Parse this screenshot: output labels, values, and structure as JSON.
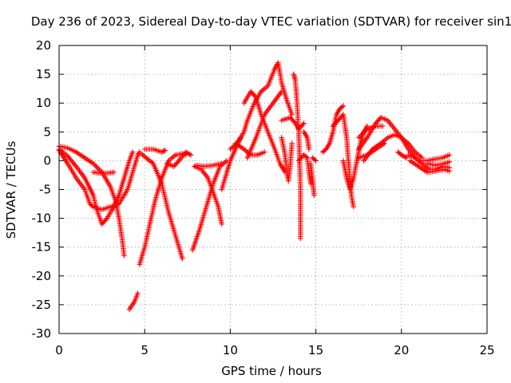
{
  "chart_data": {
    "type": "scatter",
    "title": "Day 236 of 2023, Sidereal Day-to-day VTEC variation (SDTVAR) for receiver sin1",
    "xlabel": "GPS time / hours",
    "ylabel": "SDTVAR / TECUs",
    "xlim": [
      0,
      25
    ],
    "ylim": [
      -30,
      20
    ],
    "xticks": [
      "0",
      "5",
      "10",
      "15",
      "20",
      "25"
    ],
    "yticks": [
      "-30",
      "-25",
      "-20",
      "-15",
      "-10",
      "-5",
      "0",
      "5",
      "10",
      "15",
      "20"
    ],
    "grid": true,
    "marker": "+",
    "series": [
      {
        "name": "SDTVAR",
        "color": "#ff0000",
        "tracks": [
          [
            [
              0,
              2.5
            ],
            [
              0.5,
              2.2
            ],
            [
              1,
              1.5
            ],
            [
              1.5,
              0.5
            ],
            [
              2,
              -0.5
            ],
            [
              2.5,
              -2
            ],
            [
              3,
              -4.5
            ],
            [
              3.3,
              -7
            ],
            [
              3.5,
              -10
            ],
            [
              3.7,
              -14
            ],
            [
              3.8,
              -16.5
            ]
          ],
          [
            [
              0,
              2
            ],
            [
              0.5,
              0.8
            ],
            [
              1,
              -1
            ],
            [
              1.5,
              -3
            ],
            [
              2,
              -6
            ],
            [
              2.2,
              -8.5
            ],
            [
              2.5,
              -11
            ],
            [
              2.8,
              -10
            ],
            [
              3.2,
              -8
            ],
            [
              3.5,
              -6
            ],
            [
              3.7,
              -4
            ],
            [
              3.9,
              -2
            ],
            [
              4.1,
              0
            ],
            [
              4.3,
              1.5
            ]
          ],
          [
            [
              0,
              1.8
            ],
            [
              0.5,
              -0.5
            ],
            [
              1,
              -3
            ],
            [
              1.5,
              -5
            ],
            [
              1.8,
              -7.5
            ],
            [
              2,
              -8
            ],
            [
              2.5,
              -8.5
            ],
            [
              3,
              -8
            ],
            [
              3.5,
              -7.5
            ],
            [
              4,
              -5
            ],
            [
              4.3,
              -2
            ],
            [
              4.6,
              1
            ],
            [
              4.7,
              1.5
            ]
          ],
          [
            [
              2,
              -2
            ],
            [
              2.5,
              -2.2
            ],
            [
              3,
              -2.1
            ],
            [
              3.2,
              -2
            ]
          ],
          [
            [
              4.1,
              -25.8
            ],
            [
              4.4,
              -24.5
            ],
            [
              4.6,
              -23
            ]
          ],
          [
            [
              4.7,
              -18
            ],
            [
              5,
              -15
            ],
            [
              5.3,
              -11
            ],
            [
              5.6,
              -7
            ],
            [
              6,
              -3
            ],
            [
              6.4,
              0
            ],
            [
              6.8,
              1
            ],
            [
              7.2,
              1.2
            ],
            [
              7.4,
              1
            ]
          ],
          [
            [
              4.8,
              1.2
            ],
            [
              5.5,
              -0.5
            ],
            [
              6,
              -4
            ],
            [
              6.4,
              -9
            ],
            [
              6.8,
              -13
            ],
            [
              7.2,
              -17
            ]
          ],
          [
            [
              5,
              2
            ],
            [
              5.5,
              2
            ],
            [
              6,
              1.5
            ],
            [
              6.2,
              1.8
            ]
          ],
          [
            [
              6.3,
              -0.5
            ],
            [
              6.7,
              -1
            ],
            [
              7,
              0
            ],
            [
              7.4,
              1.5
            ],
            [
              7.7,
              1
            ]
          ],
          [
            [
              7.8,
              -15.5
            ],
            [
              8.2,
              -12
            ],
            [
              8.6,
              -8
            ],
            [
              9,
              -4
            ],
            [
              9.4,
              -1
            ],
            [
              9.8,
              0
            ]
          ],
          [
            [
              7.9,
              -1
            ],
            [
              8.3,
              -1.5
            ],
            [
              8.7,
              -3
            ],
            [
              9,
              -5.5
            ],
            [
              9.3,
              -8
            ],
            [
              9.5,
              -11
            ]
          ],
          [
            [
              8,
              -0.8
            ],
            [
              8.5,
              -1
            ],
            [
              9,
              -0.8
            ],
            [
              9.5,
              -0.5
            ]
          ],
          [
            [
              9.5,
              -5
            ],
            [
              9.8,
              -2
            ],
            [
              10,
              0
            ],
            [
              10.3,
              2
            ],
            [
              10.6,
              4
            ]
          ],
          [
            [
              10,
              2
            ],
            [
              10.4,
              3
            ],
            [
              10.8,
              5
            ],
            [
              11,
              7
            ],
            [
              11.4,
              10
            ],
            [
              11.8,
              12
            ],
            [
              12.2,
              13
            ],
            [
              12.6,
              16
            ],
            [
              12.8,
              17
            ],
            [
              13,
              13.5
            ],
            [
              13.3,
              10.5
            ],
            [
              13.6,
              8
            ]
          ],
          [
            [
              10.8,
              10
            ],
            [
              11.2,
              12
            ],
            [
              11.5,
              11
            ],
            [
              11.8,
              8
            ],
            [
              12.2,
              5
            ],
            [
              12.6,
              2
            ],
            [
              12.9,
              -0.5
            ],
            [
              13.2,
              -2
            ]
          ],
          [
            [
              10.3,
              3
            ],
            [
              10.8,
              2
            ],
            [
              11.2,
              1
            ],
            [
              11.6,
              1
            ],
            [
              12,
              1.5
            ]
          ],
          [
            [
              11,
              0.5
            ],
            [
              11.5,
              4
            ],
            [
              12,
              8
            ],
            [
              12.5,
              10
            ],
            [
              13,
              12
            ]
          ],
          [
            [
              13,
              4
            ],
            [
              13.2,
              1
            ],
            [
              13.3,
              -2
            ],
            [
              13.4,
              -3.5
            ],
            [
              13.5,
              -1
            ],
            [
              13.6,
              3
            ]
          ],
          [
            [
              13,
              7
            ],
            [
              13.5,
              7.5
            ],
            [
              13.8,
              6.5
            ],
            [
              14,
              5.5
            ],
            [
              14.3,
              6.5
            ]
          ],
          [
            [
              13.7,
              15
            ],
            [
              13.8,
              14
            ],
            [
              13.9,
              10
            ],
            [
              14,
              5
            ],
            [
              14.05,
              0
            ],
            [
              14.1,
              -5
            ],
            [
              14.1,
              -13.5
            ]
          ],
          [
            [
              14,
              0
            ],
            [
              14.3,
              1
            ],
            [
              14.5,
              0.5
            ],
            [
              14.6,
              -2
            ],
            [
              14.7,
              -4
            ]
          ],
          [
            [
              14.3,
              5
            ],
            [
              14.5,
              4
            ],
            [
              14.6,
              2
            ]
          ],
          [
            [
              14.7,
              -0.5
            ],
            [
              14.8,
              -3
            ],
            [
              14.9,
              -6
            ]
          ],
          [
            [
              14.8,
              0.5
            ],
            [
              15,
              0
            ]
          ],
          [
            [
              15.4,
              1.5
            ],
            [
              15.6,
              2
            ],
            [
              15.8,
              3
            ],
            [
              16,
              5
            ],
            [
              16.2,
              8
            ],
            [
              16.4,
              9
            ],
            [
              16.6,
              9.5
            ]
          ],
          [
            [
              16,
              6
            ],
            [
              16.3,
              7
            ],
            [
              16.6,
              8
            ],
            [
              16.8,
              4
            ],
            [
              16.9,
              0
            ],
            [
              17,
              -4
            ],
            [
              17.1,
              -6.5
            ],
            [
              17.2,
              -8
            ]
          ],
          [
            [
              16.6,
              0
            ],
            [
              16.8,
              -3
            ],
            [
              17,
              -5
            ],
            [
              17.2,
              -3
            ],
            [
              17.4,
              0
            ],
            [
              17.6,
              3
            ],
            [
              17.8,
              5
            ],
            [
              18,
              6
            ]
          ],
          [
            [
              17.5,
              2
            ],
            [
              18,
              4
            ],
            [
              18.5,
              6.5
            ],
            [
              18.8,
              7.5
            ],
            [
              19.2,
              7
            ],
            [
              19.6,
              5.5
            ],
            [
              20,
              4
            ],
            [
              20.4,
              2
            ],
            [
              20.8,
              0.5
            ]
          ],
          [
            [
              17.5,
              4
            ],
            [
              18,
              5.5
            ],
            [
              18.5,
              6
            ],
            [
              18.9,
              6
            ]
          ],
          [
            [
              17.8,
              0
            ],
            [
              18.3,
              2
            ],
            [
              18.8,
              3
            ],
            [
              19.2,
              4
            ],
            [
              19.6,
              4.5
            ],
            [
              20,
              4
            ],
            [
              20.4,
              3
            ],
            [
              20.8,
              1.5
            ],
            [
              21.2,
              0.5
            ]
          ],
          [
            [
              17.5,
              0.5
            ],
            [
              18,
              1
            ],
            [
              18.5,
              2
            ],
            [
              19,
              3
            ]
          ],
          [
            [
              19.8,
              1.5
            ],
            [
              20,
              1
            ],
            [
              20.3,
              0.5
            ]
          ],
          [
            [
              20.4,
              1
            ],
            [
              20.8,
              0.5
            ],
            [
              21.2,
              -0.5
            ],
            [
              21.6,
              -1.5
            ],
            [
              22,
              -1.5
            ],
            [
              22.4,
              -1
            ],
            [
              22.8,
              -1.2
            ]
          ],
          [
            [
              20.5,
              0
            ],
            [
              21,
              -1
            ],
            [
              21.5,
              -2
            ],
            [
              22,
              -1.8
            ],
            [
              22.5,
              -1.5
            ],
            [
              22.8,
              -1.8
            ]
          ],
          [
            [
              21,
              0
            ],
            [
              21.5,
              0
            ],
            [
              22,
              0.3
            ],
            [
              22.4,
              0.5
            ],
            [
              22.8,
              1
            ]
          ],
          [
            [
              21.5,
              -0.5
            ],
            [
              22,
              -0.8
            ],
            [
              22.5,
              -0.5
            ],
            [
              22.8,
              -0.2
            ]
          ]
        ]
      }
    ]
  }
}
